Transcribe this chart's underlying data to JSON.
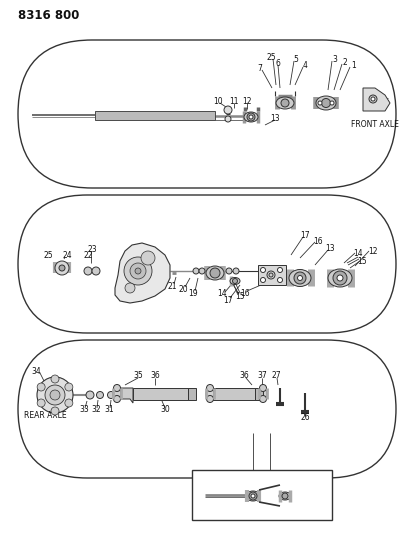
{
  "title": "8316 800",
  "bg_color": "#ffffff",
  "line_color": "#333333",
  "text_color": "#111111",
  "fig_width": 4.1,
  "fig_height": 5.33,
  "dpi": 100
}
